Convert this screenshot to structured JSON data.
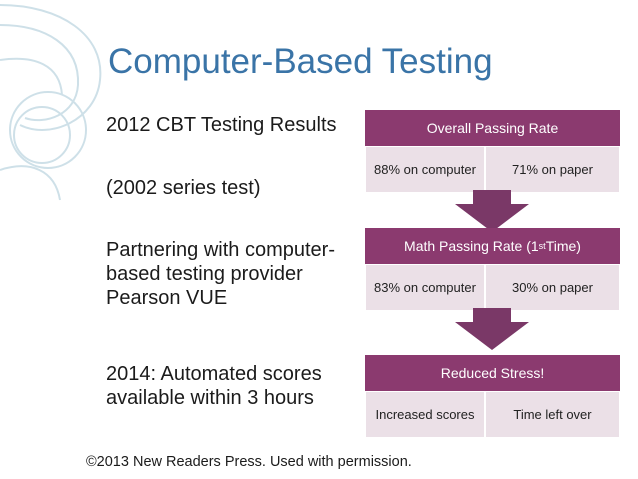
{
  "slide": {
    "title": "Computer-Based Testing",
    "bullets": [
      "2012 CBT Testing Results",
      "(2002 series test)",
      "Partnering with computer-based testing provider Pearson VUE",
      "2014: Automated scores available within 3 hours"
    ],
    "footer": "©2013 New Readers Press. Used with permission."
  },
  "process": {
    "stages": [
      {
        "title": "Overall Passing Rate",
        "left": "88% on computer",
        "right": "71% on paper"
      },
      {
        "title_main": "Math Passing Rate (1",
        "title_sup": "st",
        "title_end": " Time)",
        "left": "83% on computer",
        "right": "30% on paper"
      },
      {
        "title": "Reduced Stress!",
        "left": "Increased scores",
        "right": "Time left over"
      }
    ]
  },
  "colors": {
    "title": "#3a74a7",
    "stage_header": "#8b3a6f",
    "stage_cell": "#ebe0e7",
    "arrow": "#7a3867",
    "decoration": "#c9dde6"
  }
}
